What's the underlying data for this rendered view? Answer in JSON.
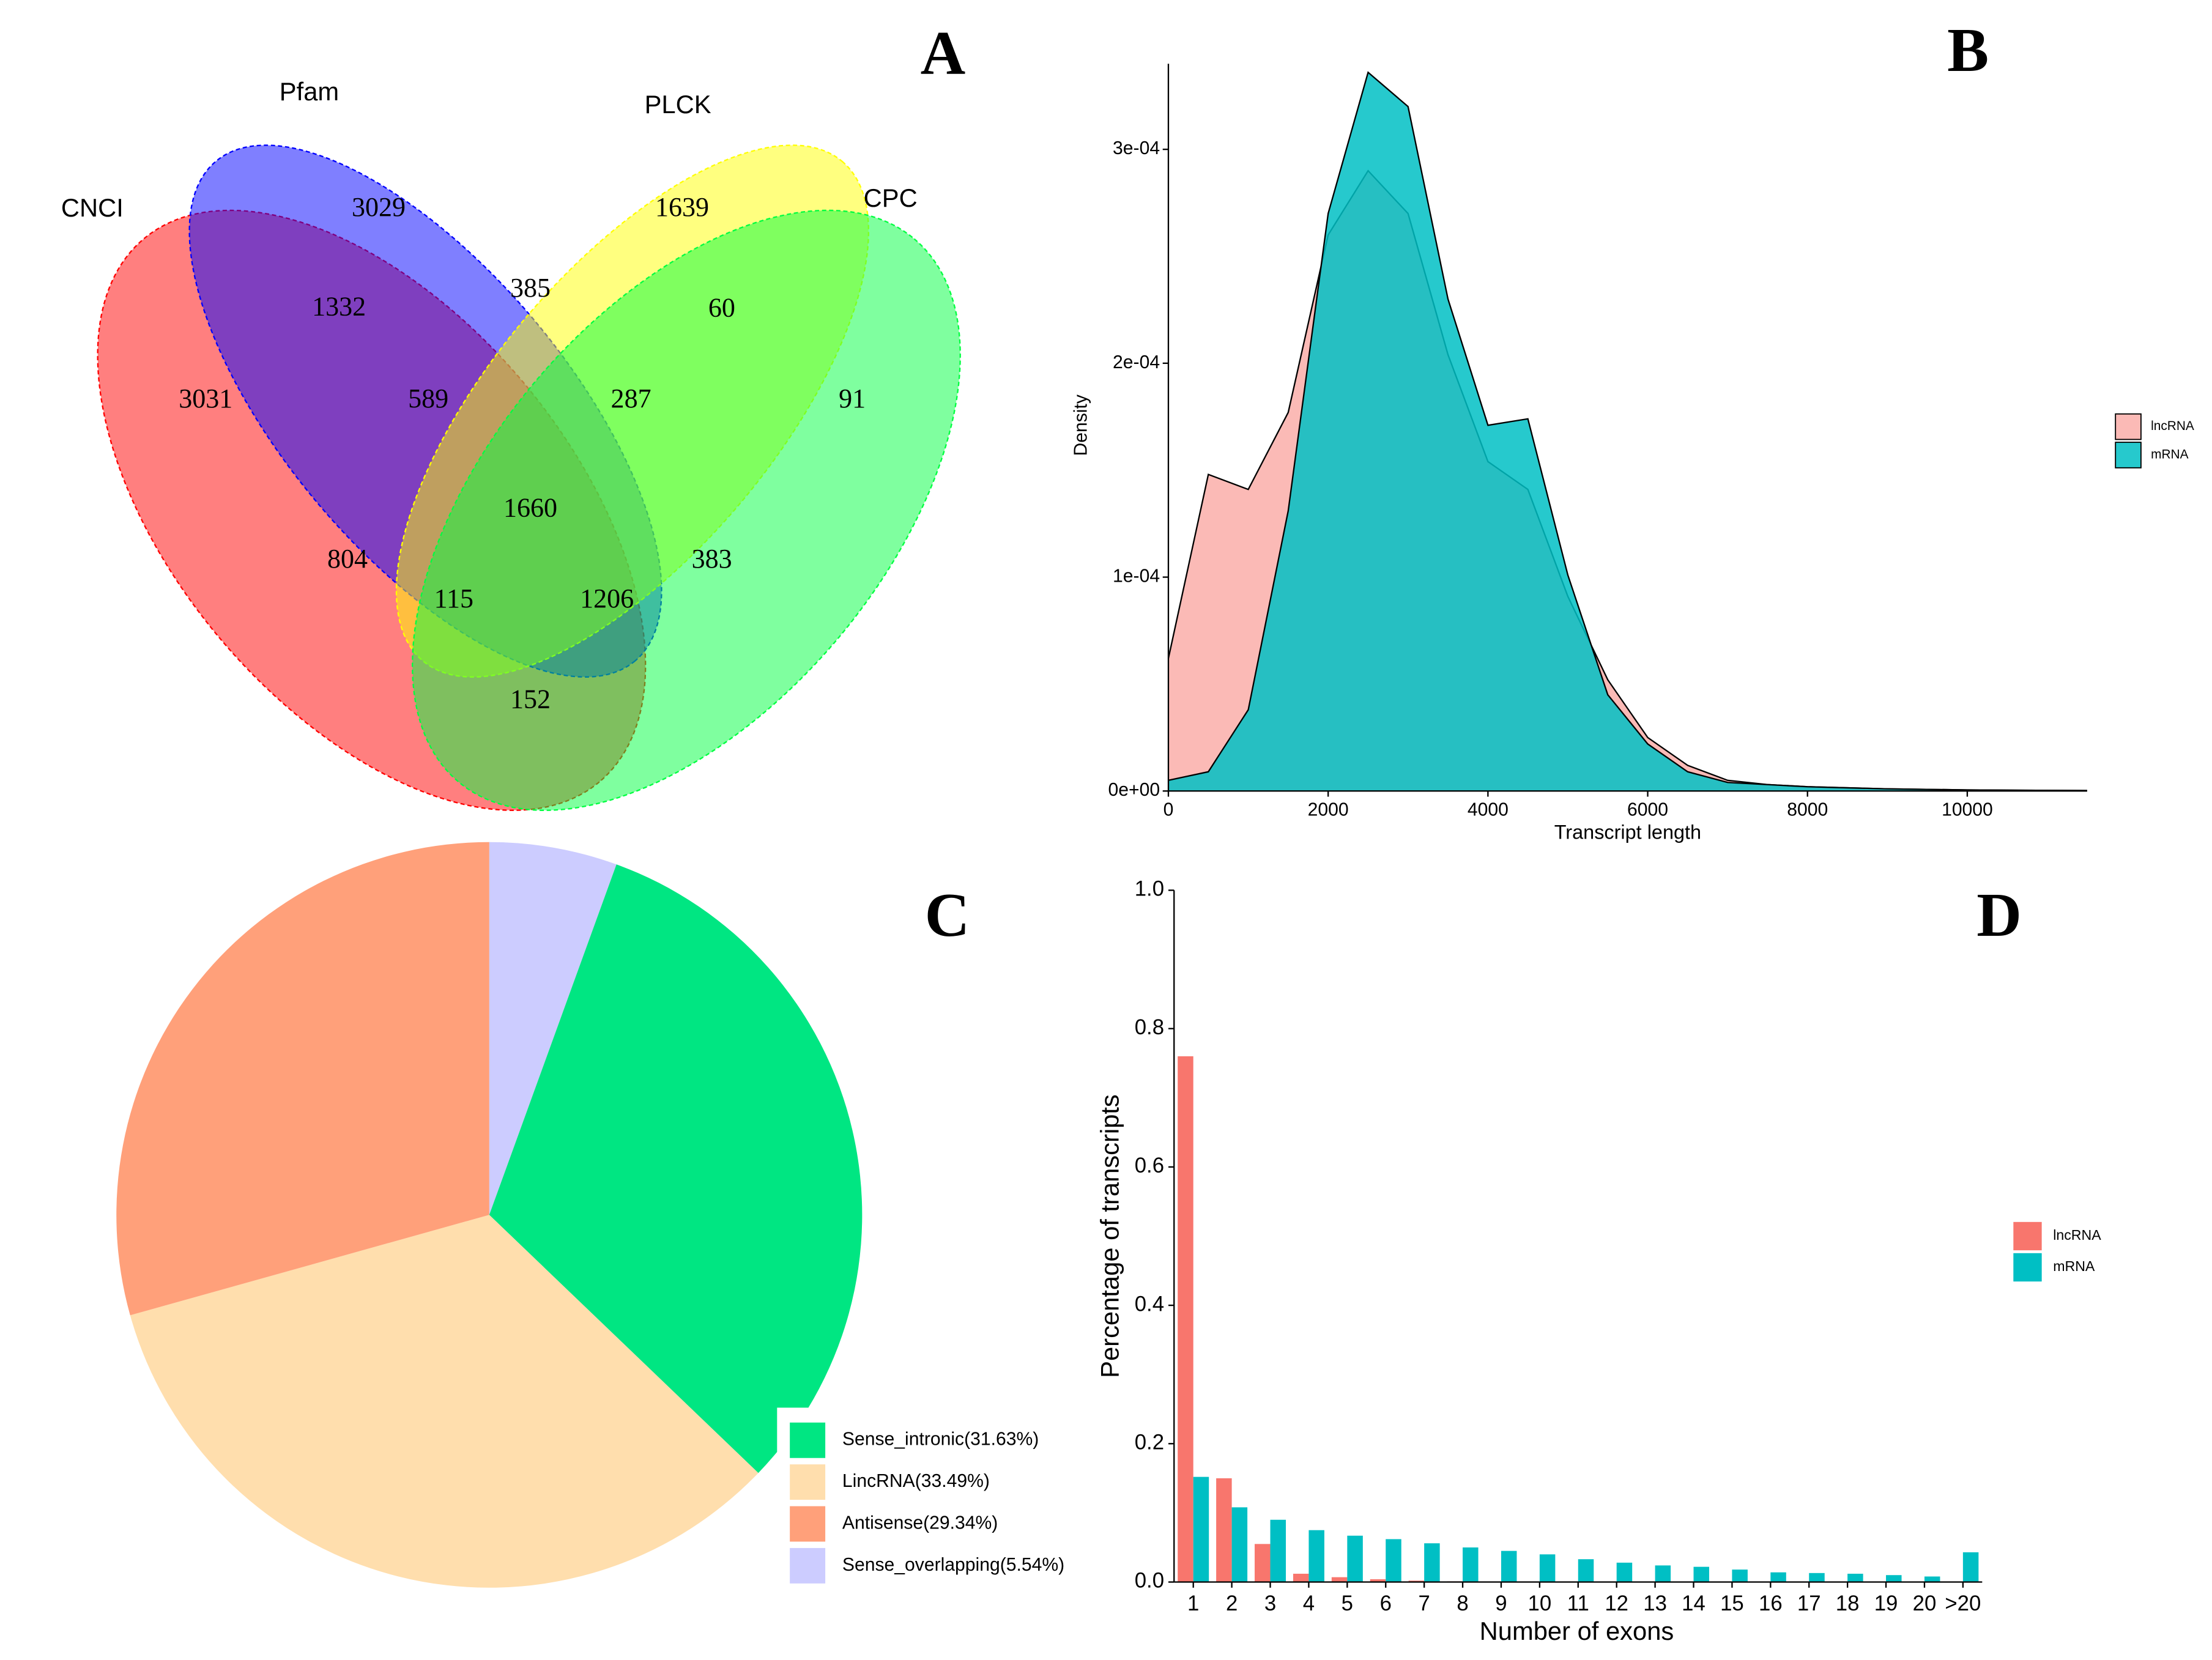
{
  "chart_data": [
    {
      "type": "venn",
      "label": "A",
      "sets": [
        {
          "name": "CNCI",
          "color": "#ff0000"
        },
        {
          "name": "Pfam",
          "color": "#0000ff"
        },
        {
          "name": "PLCK",
          "color": "#ffff00"
        },
        {
          "name": "CPC",
          "color": "#00ff40"
        }
      ],
      "values": [
        3031,
        3029,
        1639,
        91,
        1332,
        385,
        60,
        589,
        287,
        1660,
        804,
        383,
        115,
        1206,
        152
      ]
    },
    {
      "type": "area",
      "label": "B",
      "xlabel": "Transcript length",
      "ylabel": "Density",
      "x": [
        0,
        500,
        1000,
        1500,
        2000,
        2500,
        3000,
        3500,
        4000,
        4500,
        5000,
        5500,
        6000,
        6500,
        7000,
        7500,
        8000,
        9000,
        10000,
        11500
      ],
      "series": [
        {
          "name": "lncRNA",
          "color": "#f8766d",
          "values": [
            6.2e-05,
            0.000148,
            0.000141,
            0.000177,
            0.00026,
            0.00029,
            0.00027,
            0.000204,
            0.000154,
            0.000141,
            9.1e-05,
            5.2e-05,
            2.5e-05,
            1.2e-05,
            5e-06,
            3e-06,
            2e-06,
            1e-06,
            5e-07,
            2e-07
          ]
        },
        {
          "name": "mRNA",
          "color": "#00bfc4",
          "values": [
            5e-06,
            9e-06,
            3.8e-05,
            0.000131,
            0.00027,
            0.000336,
            0.00032,
            0.00023,
            0.000171,
            0.000174,
            0.000101,
            4.5e-05,
            2.2e-05,
            9e-06,
            4e-06,
            3e-06,
            2e-06,
            1e-06,
            5e-07,
            2e-07
          ]
        }
      ],
      "xlim": [
        0,
        11500
      ],
      "xticks": [
        0,
        2000,
        4000,
        6000,
        8000,
        10000
      ],
      "ylim": [
        0,
        0.00034
      ],
      "yticks": [
        {
          "value": 0,
          "label": "0e+00"
        },
        {
          "value": 0.0001,
          "label": "1e-04"
        },
        {
          "value": 0.0002,
          "label": "2e-04"
        },
        {
          "value": 0.0003,
          "label": "3e-04"
        }
      ]
    },
    {
      "type": "pie",
      "label": "C",
      "categories": [
        "Sense_intronic(31.63%)",
        "LincRNA(33.49%)",
        "Antisense(29.34%)",
        "Sense_overlapping(5.54%)"
      ],
      "values": [
        31.63,
        33.49,
        29.34,
        5.54
      ],
      "colors": [
        "#00e682",
        "#ffdead",
        "#ffa07a",
        "#ccccff"
      ]
    },
    {
      "type": "bar",
      "label": "D",
      "xlabel": "Number of exons",
      "ylabel": "Percentage of transcripts",
      "categories": [
        "1",
        "2",
        "3",
        "4",
        "5",
        "6",
        "7",
        "8",
        "9",
        "10",
        "11",
        "12",
        "13",
        "14",
        "15",
        "16",
        "17",
        "18",
        "19",
        "20",
        ">20"
      ],
      "series": [
        {
          "name": "lncRNA",
          "color": "#f8766d",
          "values": [
            0.76,
            0.15,
            0.055,
            0.012,
            0.007,
            0.004,
            0.002,
            0.001,
            0,
            0,
            0,
            0,
            0,
            0,
            0,
            0,
            0,
            0,
            0,
            0,
            0
          ]
        },
        {
          "name": "mRNA",
          "color": "#00bfc4",
          "values": [
            0.152,
            0.108,
            0.09,
            0.075,
            0.067,
            0.062,
            0.056,
            0.05,
            0.045,
            0.04,
            0.033,
            0.028,
            0.024,
            0.022,
            0.018,
            0.014,
            0.013,
            0.012,
            0.01,
            0.008,
            0.043
          ]
        }
      ],
      "ylim": [
        0,
        1
      ],
      "yticks": [
        {
          "value": 0,
          "label": "0.0"
        },
        0.2,
        0.4,
        0.6,
        0.8,
        {
          "value": 1,
          "label": "1.0"
        }
      ]
    }
  ]
}
